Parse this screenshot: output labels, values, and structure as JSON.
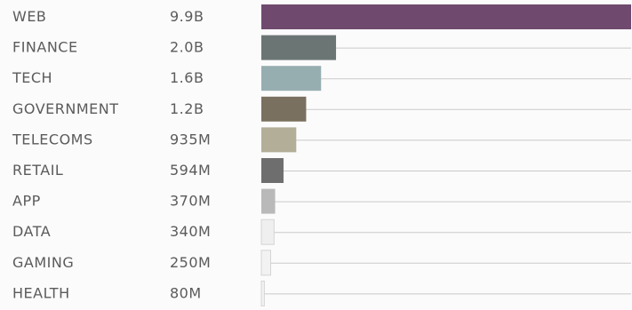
{
  "chart_data": {
    "type": "bar",
    "orientation": "horizontal",
    "categories": [
      "WEB",
      "FINANCE",
      "TECH",
      "GOVERNMENT",
      "TELECOMS",
      "RETAIL",
      "APP",
      "DATA",
      "GAMING",
      "HEALTH"
    ],
    "values": [
      9.9,
      2.0,
      1.6,
      1.2,
      0.935,
      0.594,
      0.37,
      0.34,
      0.25,
      0.08
    ],
    "value_unit": "billions",
    "value_labels": [
      "9.9B",
      "2.0B",
      "1.6B",
      "1.2B",
      "935M",
      "594M",
      "370M",
      "340M",
      "250M",
      "80M"
    ],
    "colors": [
      "#6f4a6e",
      "#6b7574",
      "#97aeb1",
      "#7a705f",
      "#b3ae98",
      "#6e6e6e",
      "#b9b9b9",
      "#efefef",
      "#f2f2f2",
      "#f2f2f2"
    ],
    "xlim": [
      0,
      9.9
    ],
    "grid": false,
    "legend": "none"
  }
}
